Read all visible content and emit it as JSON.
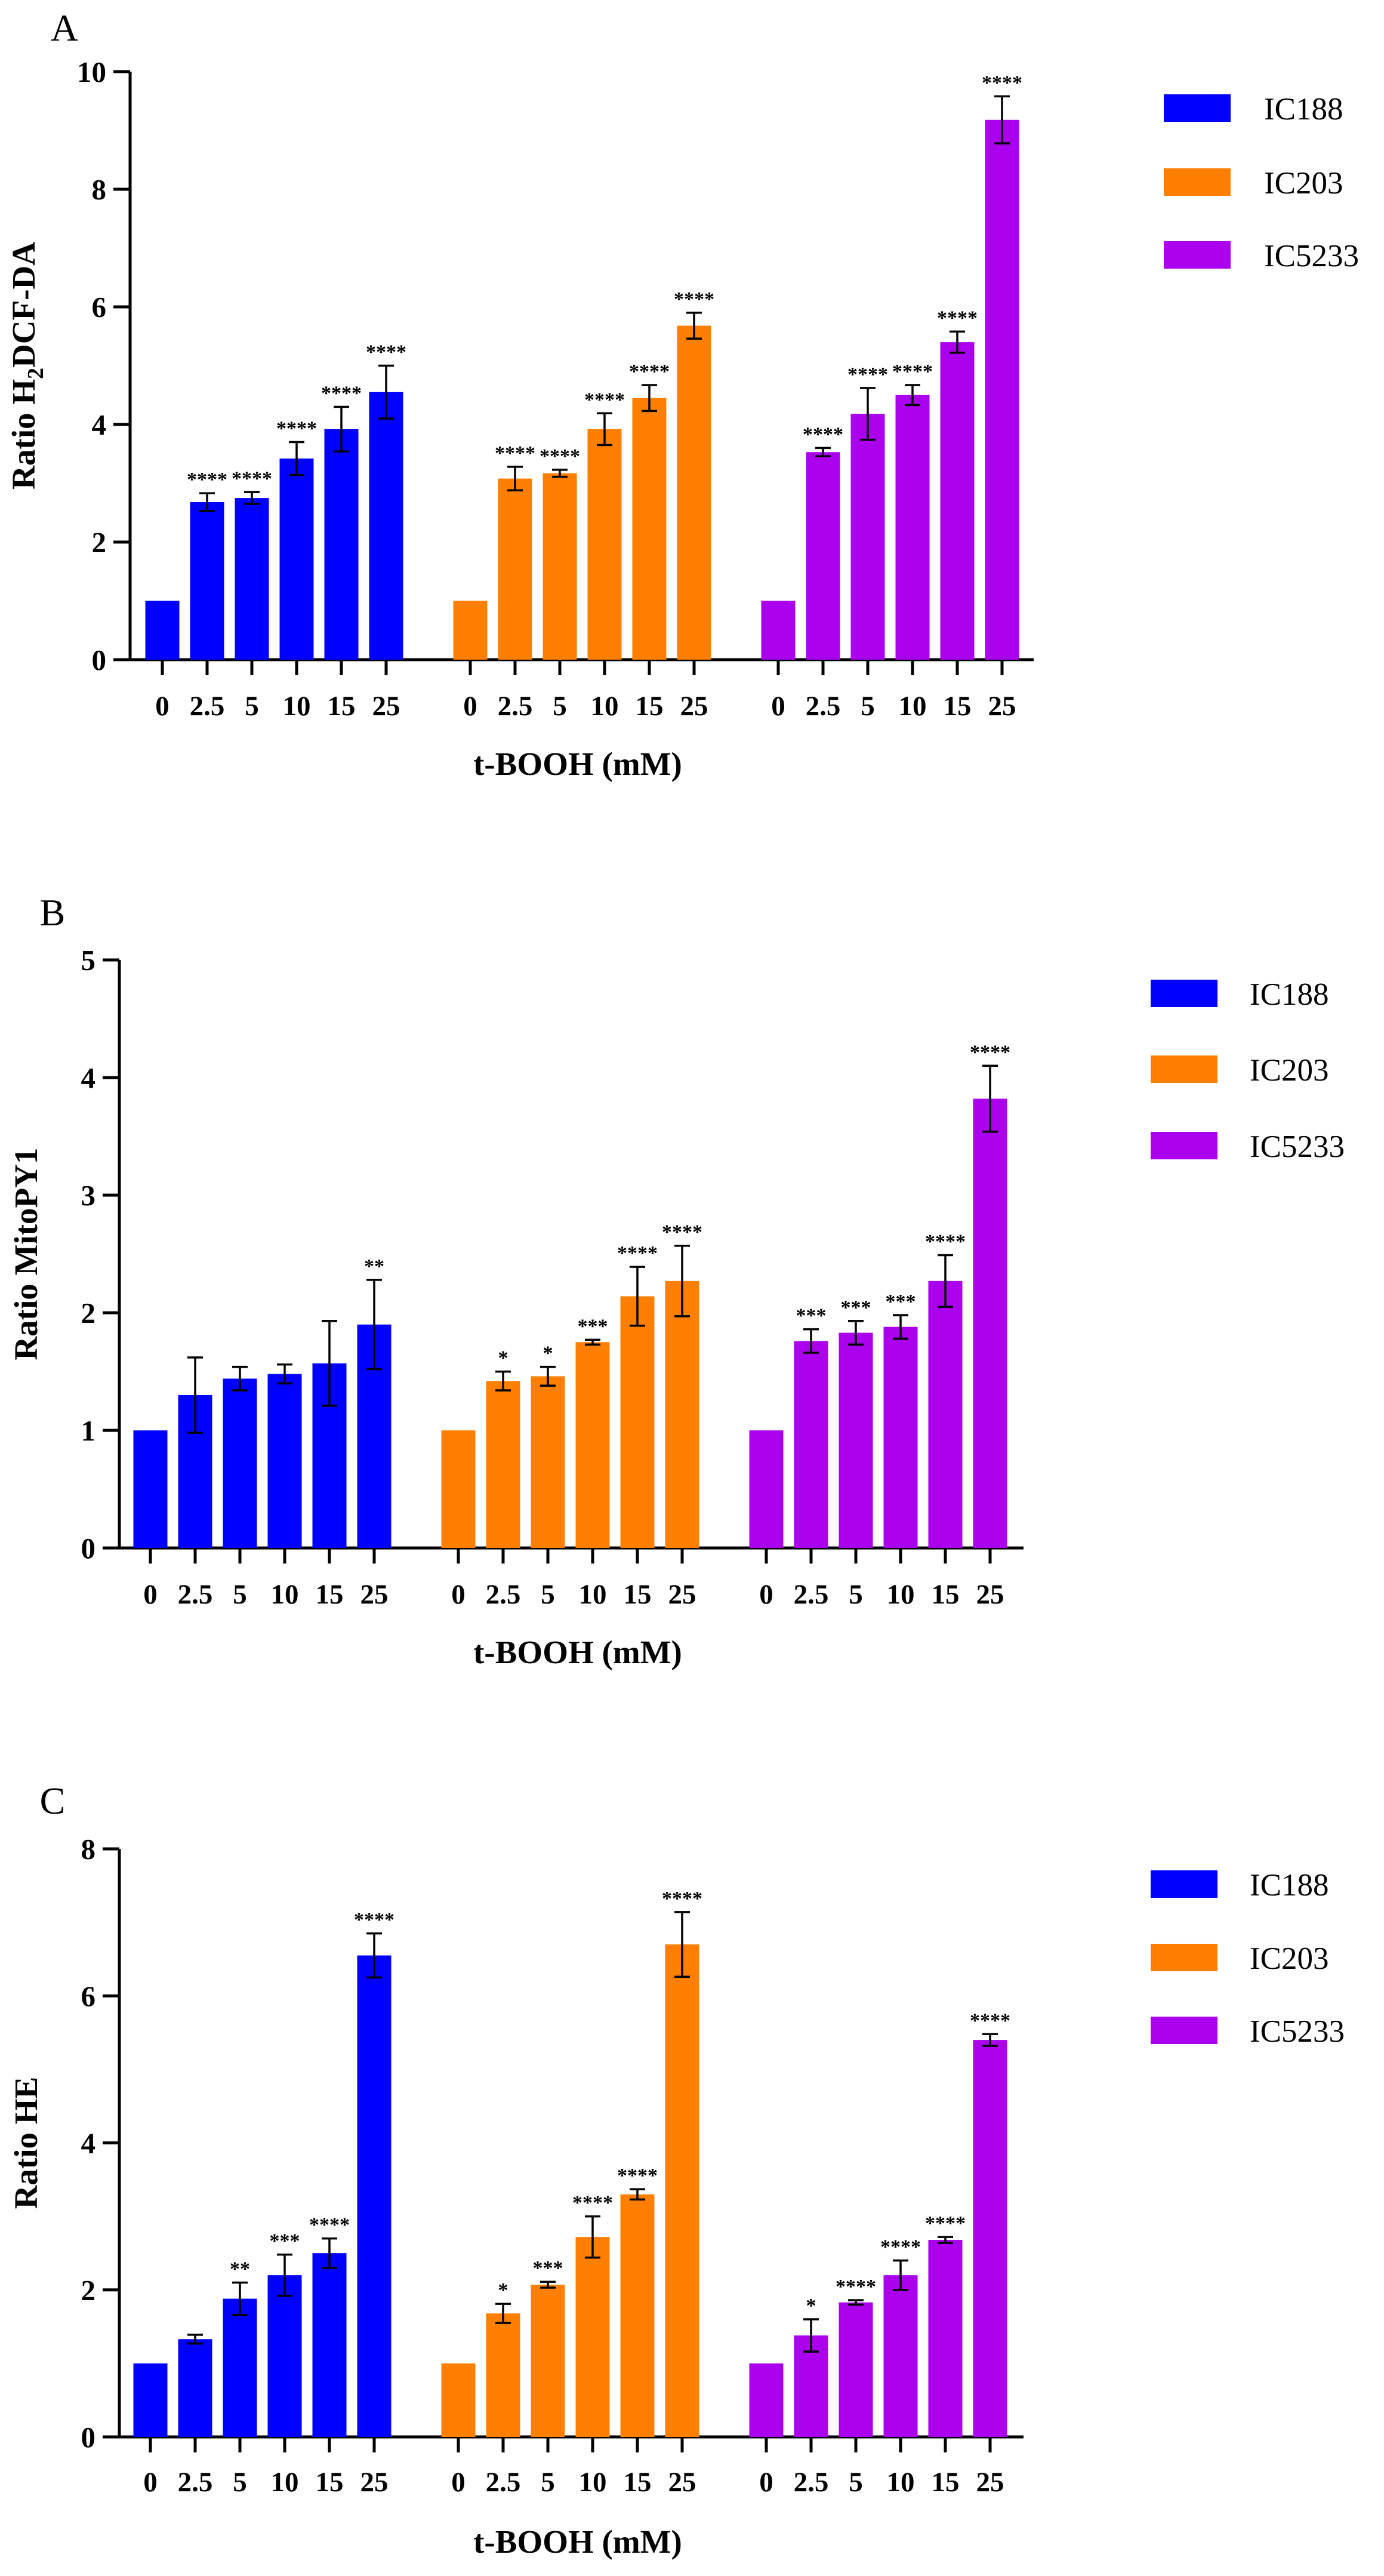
{
  "chart_data": [
    {
      "type": "bar",
      "panel_label": "A",
      "ylabel_prefix": "Ratio H",
      "ylabel_sub": "2",
      "ylabel_suffix": "DCF-DA",
      "xlabel": "t-BOOH (mM)",
      "ylim": [
        0,
        10
      ],
      "yticks": [
        "0",
        "2",
        "4",
        "6",
        "8",
        "10"
      ],
      "categories": [
        "0",
        "2.5",
        "5",
        "10",
        "15",
        "25"
      ],
      "legend_position": "top-right",
      "series": [
        {
          "name": "IC188",
          "color": "#0000ff",
          "values": [
            1.0,
            2.68,
            2.75,
            3.42,
            3.92,
            4.55
          ],
          "errors": [
            0.0,
            0.15,
            0.1,
            0.28,
            0.38,
            0.45
          ],
          "significance": [
            "",
            "****",
            "****",
            "****",
            "****",
            "****"
          ]
        },
        {
          "name": "IC203",
          "color": "#ff8000",
          "values": [
            1.0,
            3.08,
            3.17,
            3.92,
            4.45,
            5.68
          ],
          "errors": [
            0.0,
            0.2,
            0.06,
            0.27,
            0.22,
            0.22
          ],
          "significance": [
            "",
            "****",
            "****",
            "****",
            "****",
            "****"
          ]
        },
        {
          "name": "IC5233",
          "color": "#aa00ee",
          "values": [
            1.0,
            3.53,
            4.18,
            4.5,
            5.4,
            9.18
          ],
          "errors": [
            0.0,
            0.07,
            0.44,
            0.17,
            0.18,
            0.4
          ],
          "significance": [
            "",
            "****",
            "****",
            "****",
            "****",
            "****"
          ]
        }
      ]
    },
    {
      "type": "bar",
      "panel_label": "B",
      "ylabel_prefix": "Ratio MitoPY1",
      "ylabel_sub": "",
      "ylabel_suffix": "",
      "xlabel": "t-BOOH (mM)",
      "ylim": [
        0,
        5
      ],
      "yticks": [
        "0",
        "1",
        "2",
        "3",
        "4",
        "5"
      ],
      "categories": [
        "0",
        "2.5",
        "5",
        "10",
        "15",
        "25"
      ],
      "legend_position": "top-right",
      "series": [
        {
          "name": "IC188",
          "color": "#0000ff",
          "values": [
            1.0,
            1.3,
            1.44,
            1.48,
            1.57,
            1.9
          ],
          "errors": [
            0.0,
            0.32,
            0.1,
            0.08,
            0.36,
            0.38
          ],
          "significance": [
            "",
            "",
            "",
            "",
            "",
            "**"
          ]
        },
        {
          "name": "IC203",
          "color": "#ff8000",
          "values": [
            1.0,
            1.42,
            1.46,
            1.75,
            2.14,
            2.27
          ],
          "errors": [
            0.0,
            0.08,
            0.08,
            0.02,
            0.25,
            0.3
          ],
          "significance": [
            "",
            "*",
            "*",
            "***",
            "****",
            "****"
          ]
        },
        {
          "name": "IC5233",
          "color": "#aa00ee",
          "values": [
            1.0,
            1.76,
            1.83,
            1.88,
            2.27,
            3.82
          ],
          "errors": [
            0.0,
            0.1,
            0.1,
            0.1,
            0.22,
            0.28
          ],
          "significance": [
            "",
            "***",
            "***",
            "***",
            "****",
            "****"
          ]
        }
      ]
    },
    {
      "type": "bar",
      "panel_label": "C",
      "ylabel_prefix": "Ratio HE",
      "ylabel_sub": "",
      "ylabel_suffix": "",
      "xlabel": "t-BOOH (mM)",
      "ylim": [
        0,
        8
      ],
      "yticks": [
        "0",
        "2",
        "4",
        "6",
        "8"
      ],
      "categories": [
        "0",
        "2.5",
        "5",
        "10",
        "15",
        "25"
      ],
      "legend_position": "top-right",
      "series": [
        {
          "name": "IC188",
          "color": "#0000ff",
          "values": [
            1.0,
            1.33,
            1.88,
            2.2,
            2.5,
            6.55
          ],
          "errors": [
            0.0,
            0.06,
            0.22,
            0.28,
            0.2,
            0.3
          ],
          "significance": [
            "",
            "",
            "**",
            "***",
            "****",
            "****"
          ]
        },
        {
          "name": "IC203",
          "color": "#ff8000",
          "values": [
            1.0,
            1.68,
            2.07,
            2.72,
            3.3,
            6.7
          ],
          "errors": [
            0.0,
            0.13,
            0.04,
            0.28,
            0.07,
            0.44
          ],
          "significance": [
            "",
            "*",
            "***",
            "****",
            "****",
            "****"
          ]
        },
        {
          "name": "IC5233",
          "color": "#aa00ee",
          "values": [
            1.0,
            1.38,
            1.83,
            2.2,
            2.68,
            5.4
          ],
          "errors": [
            0.0,
            0.22,
            0.03,
            0.2,
            0.04,
            0.08
          ],
          "significance": [
            "",
            "*",
            "****",
            "****",
            "****",
            "****"
          ]
        }
      ]
    }
  ]
}
